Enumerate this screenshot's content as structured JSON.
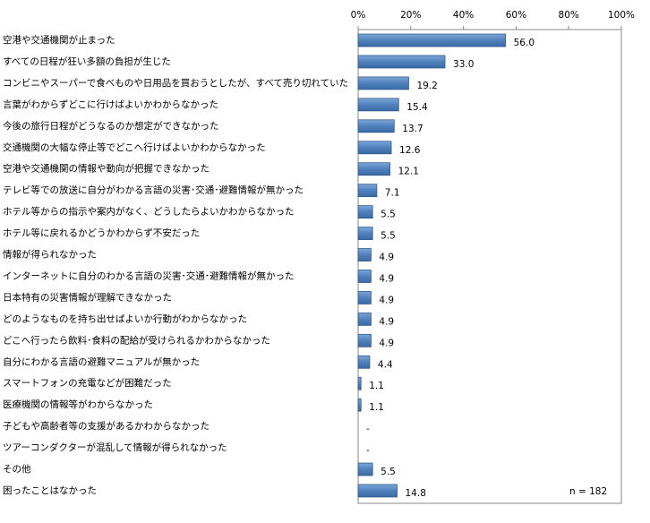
{
  "chart_data": {
    "type": "bar",
    "orientation": "horizontal",
    "categories": [
      "空港や交通機関が止まった",
      "すべての日程が狂い多額の負担が生じた",
      "コンビニやスーパーで食べものや日用品を買おうとしたが、すべて売り切れていた",
      "言葉がわからずどこに行けばよいかわからなかった",
      "今後の旅行日程がどうなるのか想定ができなかった",
      "交通機関の大幅な停止等でどこへ行けばよいかわからなかった",
      "空港や交通機関の情報や動向が把握できなかった",
      "テレビ等での放送に自分がわかる言語の災害･交通･避難情報が無かった",
      "ホテル等からの指示や案内がなく、どうしたらよいかわからなかった",
      "ホテル等に戻れるかどうかわからず不安だった",
      "情報が得られなかった",
      "インターネットに自分のわかる言語の災害･交通･避難情報が無かった",
      "日本特有の災害情報が理解できなかった",
      "どのようなものを持ち出せばよいか行動がわからなかった",
      "どこへ行ったら飲料･食料の配給が受けられるかわからなかった",
      "自分にわかる言語の避難マニュアルが無かった",
      "スマートフォンの充電などが困難だった",
      "医療機関の情報等がわからなかった",
      "子どもや高齢者等の支援があるかわからなかった",
      "ツアーコンダクターが混乱して情報が得られなかった",
      "その他",
      "困ったことはなかった"
    ],
    "values": [
      56.0,
      33.0,
      19.2,
      15.4,
      13.7,
      12.6,
      12.1,
      7.1,
      5.5,
      5.5,
      4.9,
      4.9,
      4.9,
      4.9,
      4.9,
      4.4,
      1.1,
      1.1,
      null,
      null,
      5.5,
      14.8
    ],
    "value_labels": [
      "56.0",
      "33.0",
      "19.2",
      "15.4",
      "13.7",
      "12.6",
      "12.1",
      "7.1",
      "5.5",
      "5.5",
      "4.9",
      "4.9",
      "4.9",
      "4.9",
      "4.9",
      "4.4",
      "1.1",
      "1.1",
      "-",
      "-",
      "5.5",
      "14.8"
    ],
    "color": "#4f81bd",
    "xlim": [
      0,
      100
    ],
    "xticks": [
      {
        "value": 0,
        "label": "0%"
      },
      {
        "value": 20,
        "label": "20%"
      },
      {
        "value": 40,
        "label": "40%"
      },
      {
        "value": 60,
        "label": "60%"
      },
      {
        "value": 80,
        "label": "80%"
      },
      {
        "value": 100,
        "label": "100%"
      }
    ],
    "annotation": "n = 182"
  }
}
